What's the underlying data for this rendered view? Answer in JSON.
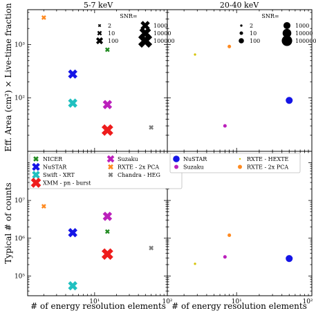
{
  "panel_titles": [
    "5-7 keV",
    "20-40 keV"
  ],
  "ylabel_top": "Eff. Area (cm²) × Live-time fraction",
  "ylabel_bottom": "Typical # of counts",
  "xlabel": "# of energy resolution elements",
  "colors": {
    "NICER": "#228b22",
    "NuSTAR": "#1515e6",
    "Swift - XRT": "#20c0c0",
    "XMM - pn - burst": "#ee1c1c",
    "Suzaku": "#bb20bb",
    "RXTE - 2x PCA": "#ff8a20",
    "Chandra - HEG": "#808080",
    "RXTE - HEXTE": "#d6c40a"
  },
  "snr_legend": {
    "title": "SNR=",
    "entries": [
      "2",
      "10",
      "100",
      "1000",
      "10000",
      "100000"
    ]
  },
  "legend_left": [
    "NICER",
    "NuSTAR",
    "Swift - XRT",
    "XMM - pn - burst",
    "Suzaku",
    "RXTE - 2x PCA",
    "Chandra - HEG"
  ],
  "legend_right": [
    "NuSTAR",
    "Suzaku",
    "RXTE - HEXTE",
    "RXTE - 2x PCA"
  ],
  "chart_data": [
    {
      "type": "scatter",
      "panel": "top-left",
      "title": "5-7 keV",
      "xlabel": "",
      "ylabel": "Eff. Area (cm²) × Live-time fraction",
      "xlog": true,
      "ylog": true,
      "xlim": [
        1.2,
        100
      ],
      "ylim": [
        10,
        4500
      ],
      "marker": "x",
      "ytick_labels": [
        "10²",
        "10³"
      ],
      "points": [
        {
          "instrument": "RXTE - 2x PCA",
          "x": 2,
          "y": 3200,
          "snr": 10
        },
        {
          "instrument": "NICER",
          "x": 15,
          "y": 800,
          "snr": 10
        },
        {
          "instrument": "NuSTAR",
          "x": 5,
          "y": 280,
          "snr": 1000
        },
        {
          "instrument": "Swift - XRT",
          "x": 5,
          "y": 80,
          "snr": 1000
        },
        {
          "instrument": "Suzaku",
          "x": 15,
          "y": 75,
          "snr": 1000
        },
        {
          "instrument": "XMM - pn - burst",
          "x": 15,
          "y": 25,
          "snr": 10000
        },
        {
          "instrument": "Chandra - HEG",
          "x": 60,
          "y": 28,
          "snr": 10
        }
      ]
    },
    {
      "type": "scatter",
      "panel": "top-right",
      "title": "20-40 keV",
      "xlabel": "",
      "ylabel": "",
      "xlog": true,
      "ylog": true,
      "xlim": [
        1.2,
        100
      ],
      "ylim": [
        10,
        4500
      ],
      "marker": "circle",
      "points": [
        {
          "instrument": "RXTE - HEXTE",
          "x": 2.8,
          "y": 650,
          "snr": 2
        },
        {
          "instrument": "RXTE - 2x PCA",
          "x": 8,
          "y": 920,
          "snr": 10
        },
        {
          "instrument": "NuSTAR",
          "x": 50,
          "y": 90,
          "snr": 1000
        },
        {
          "instrument": "Suzaku",
          "x": 7,
          "y": 30,
          "snr": 10
        }
      ]
    },
    {
      "type": "scatter",
      "panel": "bottom-left",
      "xlabel": "# of energy resolution elements",
      "ylabel": "Typical # of counts",
      "xlog": true,
      "ylog": true,
      "xlim": [
        1.2,
        100
      ],
      "ylim": [
        30000,
        200000000
      ],
      "marker": "x",
      "xtick_labels": [
        "10¹",
        "10²"
      ],
      "ytick_labels": [
        "10⁵",
        "10⁶",
        "10⁷"
      ],
      "points": [
        {
          "instrument": "RXTE - 2x PCA",
          "x": 2,
          "y": 7000000,
          "snr": 10
        },
        {
          "instrument": "Suzaku",
          "x": 15,
          "y": 3800000,
          "snr": 1000
        },
        {
          "instrument": "NICER",
          "x": 15,
          "y": 1500000,
          "snr": 10
        },
        {
          "instrument": "NuSTAR",
          "x": 5,
          "y": 1400000,
          "snr": 1000
        },
        {
          "instrument": "XMM - pn - burst",
          "x": 15,
          "y": 380000,
          "snr": 10000
        },
        {
          "instrument": "Chandra - HEG",
          "x": 60,
          "y": 550000,
          "snr": 10
        },
        {
          "instrument": "Swift - XRT",
          "x": 5,
          "y": 55000,
          "snr": 1000
        }
      ]
    },
    {
      "type": "scatter",
      "panel": "bottom-right",
      "xlabel": "# of energy resolution elements",
      "ylabel": "",
      "xlog": true,
      "ylog": true,
      "xlim": [
        1.2,
        100
      ],
      "ylim": [
        30000,
        200000000
      ],
      "marker": "circle",
      "xtick_labels": [
        "10¹",
        "10²"
      ],
      "points": [
        {
          "instrument": "RXTE - 2x PCA",
          "x": 8,
          "y": 1200000,
          "snr": 10
        },
        {
          "instrument": "Suzaku",
          "x": 7,
          "y": 320000,
          "snr": 10
        },
        {
          "instrument": "RXTE - HEXTE",
          "x": 2.8,
          "y": 210000,
          "snr": 2
        },
        {
          "instrument": "NuSTAR",
          "x": 50,
          "y": 290000,
          "snr": 1000
        }
      ]
    }
  ]
}
